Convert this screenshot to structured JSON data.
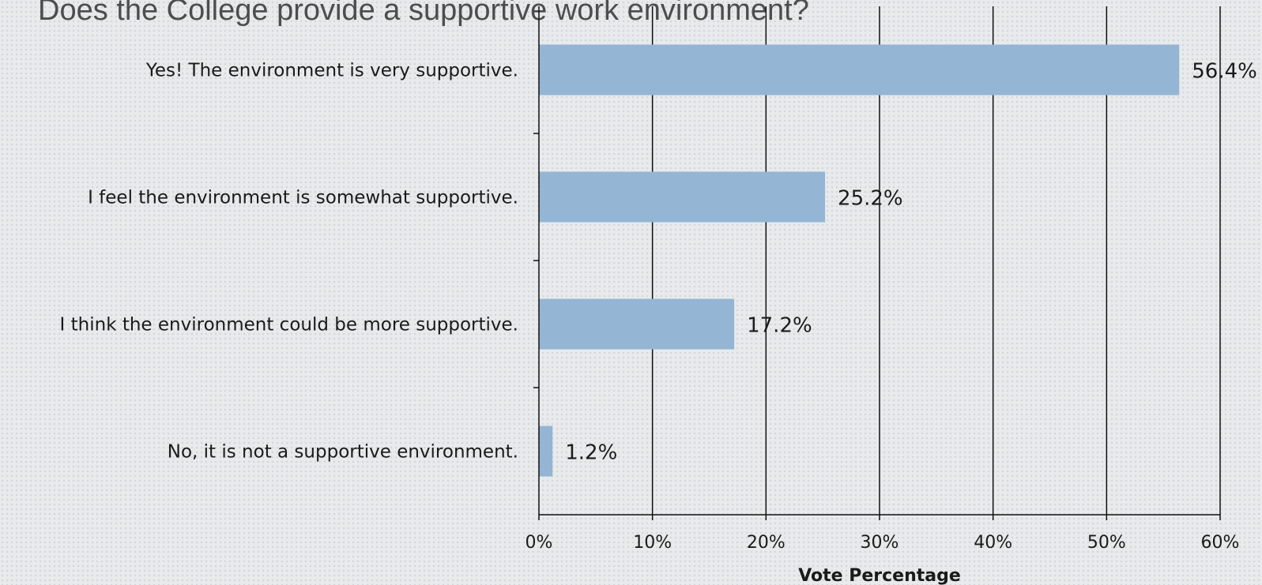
{
  "chart_data": {
    "type": "bar",
    "orientation": "horizontal",
    "title": "Does the College provide a supportive work environment?",
    "categories": [
      "Yes! The environment is very supportive.",
      "I feel the environment is somewhat supportive.",
      "I think the environment could be more supportive.",
      "No, it is not a supportive environment."
    ],
    "values": [
      56.4,
      25.2,
      17.2,
      1.2
    ],
    "data_labels": [
      "56.4%",
      "25.2%",
      "17.2%",
      "1.2%"
    ],
    "xlabel": "Vote Percentage",
    "ylabel": "",
    "xlim": [
      0,
      60
    ],
    "x_ticks": [
      "0%",
      "10%",
      "20%",
      "30%",
      "40%",
      "50%",
      "60%"
    ],
    "grid": true,
    "bar_color": "#94b5d4"
  }
}
